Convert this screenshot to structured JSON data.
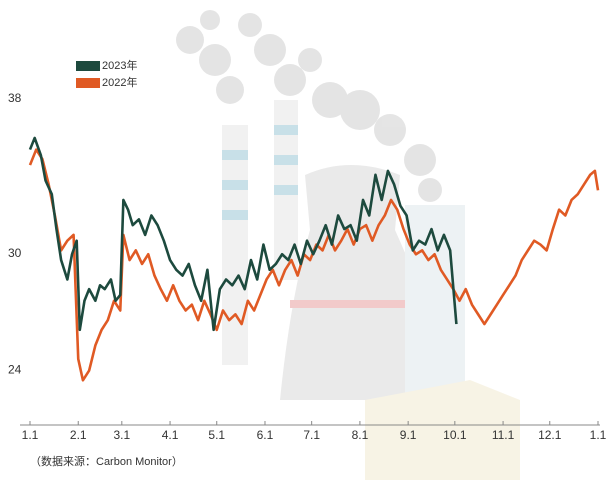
{
  "chart_data": {
    "type": "line",
    "source": "（数据来源：Carbon Monitor）",
    "ylim": [
      22,
      40
    ],
    "yticks": [
      24,
      30,
      38
    ],
    "xlim": [
      0,
      365
    ],
    "xticks": [
      {
        "value": 0,
        "label": "1.1"
      },
      {
        "value": 31,
        "label": "2.1"
      },
      {
        "value": 59,
        "label": "3.1"
      },
      {
        "value": 90,
        "label": "4.1"
      },
      {
        "value": 120,
        "label": "5.1"
      },
      {
        "value": 151,
        "label": "6.1"
      },
      {
        "value": 181,
        "label": "7.1"
      },
      {
        "value": 212,
        "label": "8.1"
      },
      {
        "value": 243,
        "label": "9.1"
      },
      {
        "value": 273,
        "label": "10.1"
      },
      {
        "value": 304,
        "label": "11.1"
      },
      {
        "value": 334,
        "label": "12.1"
      },
      {
        "value": 365,
        "label": "1.1"
      }
    ],
    "series": [
      {
        "name": "2023年",
        "color": "#1d4a3e",
        "x": [
          0,
          3,
          7,
          10,
          14,
          17,
          20,
          24,
          27,
          30,
          32,
          35,
          38,
          42,
          45,
          48,
          52,
          55,
          58,
          60,
          63,
          66,
          70,
          74,
          78,
          82,
          86,
          90,
          94,
          98,
          102,
          106,
          110,
          114,
          118,
          122,
          126,
          130,
          134,
          138,
          142,
          146,
          150,
          154,
          158,
          162,
          166,
          170,
          174,
          178,
          182,
          186,
          190,
          194,
          198,
          202,
          206,
          210,
          214,
          218,
          222,
          226,
          230,
          234,
          238,
          242,
          246,
          250,
          254,
          258,
          262,
          266,
          270,
          274
        ],
        "values": [
          36,
          36.6,
          35.7,
          34.4,
          33.7,
          31.9,
          30.3,
          29.3,
          30.6,
          31.3,
          26.7,
          28.2,
          28.8,
          28.2,
          29,
          28.8,
          29.3,
          28.2,
          28.5,
          33.4,
          32.9,
          32.1,
          32.4,
          31.6,
          32.6,
          32.1,
          31.3,
          30.3,
          29.8,
          29.5,
          30.1,
          29,
          28.2,
          29.8,
          26.7,
          28.8,
          29.3,
          29,
          29.5,
          28.8,
          30.3,
          29.3,
          31.1,
          29.8,
          30.1,
          30.6,
          30.3,
          31.1,
          30.1,
          31.3,
          30.6,
          31.3,
          32.1,
          31.1,
          32.6,
          31.9,
          32.1,
          31.3,
          33.4,
          32.6,
          34.7,
          33.4,
          34.9,
          34.2,
          33.1,
          32.6,
          30.8,
          31.3,
          31.1,
          31.9,
          30.8,
          31.6,
          30.8,
          27
        ]
      },
      {
        "name": "2022年",
        "color": "#e05a24",
        "x": [
          0,
          4,
          8,
          12,
          16,
          20,
          24,
          28,
          31,
          34,
          38,
          42,
          46,
          50,
          54,
          58,
          60,
          64,
          68,
          72,
          76,
          80,
          84,
          88,
          92,
          96,
          100,
          104,
          108,
          112,
          116,
          120,
          124,
          128,
          132,
          136,
          140,
          144,
          148,
          152,
          156,
          160,
          164,
          168,
          172,
          176,
          180,
          184,
          188,
          192,
          196,
          200,
          204,
          208,
          212,
          216,
          220,
          224,
          228,
          232,
          236,
          240,
          244,
          248,
          252,
          256,
          260,
          264,
          268,
          272,
          276,
          280,
          284,
          288,
          292,
          296,
          300,
          304,
          308,
          312,
          316,
          320,
          324,
          328,
          332,
          336,
          340,
          344,
          348,
          352,
          356,
          360,
          363,
          365
        ],
        "values": [
          35.2,
          36,
          35.5,
          34.2,
          32.6,
          30.8,
          31.3,
          31.6,
          25.2,
          24.1,
          24.6,
          25.9,
          26.7,
          27.2,
          28.2,
          27.7,
          31.6,
          30.3,
          30.8,
          30.1,
          30.6,
          29.5,
          28.8,
          28.2,
          29,
          28.2,
          27.7,
          28,
          27.2,
          28.2,
          27.5,
          26.7,
          27.7,
          27.2,
          27.5,
          27,
          28.2,
          27.7,
          28.5,
          29.3,
          29.8,
          29,
          29.8,
          30.3,
          29.5,
          30.6,
          30.3,
          31.1,
          30.8,
          31.6,
          30.8,
          31.3,
          31.9,
          31.1,
          31.9,
          32.1,
          31.3,
          32.1,
          32.6,
          33.4,
          32.9,
          31.9,
          31.1,
          30.6,
          30.8,
          30.3,
          30.6,
          29.8,
          29.3,
          28.8,
          28.2,
          28.8,
          28,
          27.5,
          27,
          27.5,
          28,
          28.5,
          29,
          29.5,
          30.3,
          30.8,
          31.3,
          31.1,
          30.8,
          31.9,
          32.9,
          32.6,
          33.4,
          33.7,
          34.2,
          34.7,
          34.9,
          33.9
        ]
      }
    ]
  }
}
